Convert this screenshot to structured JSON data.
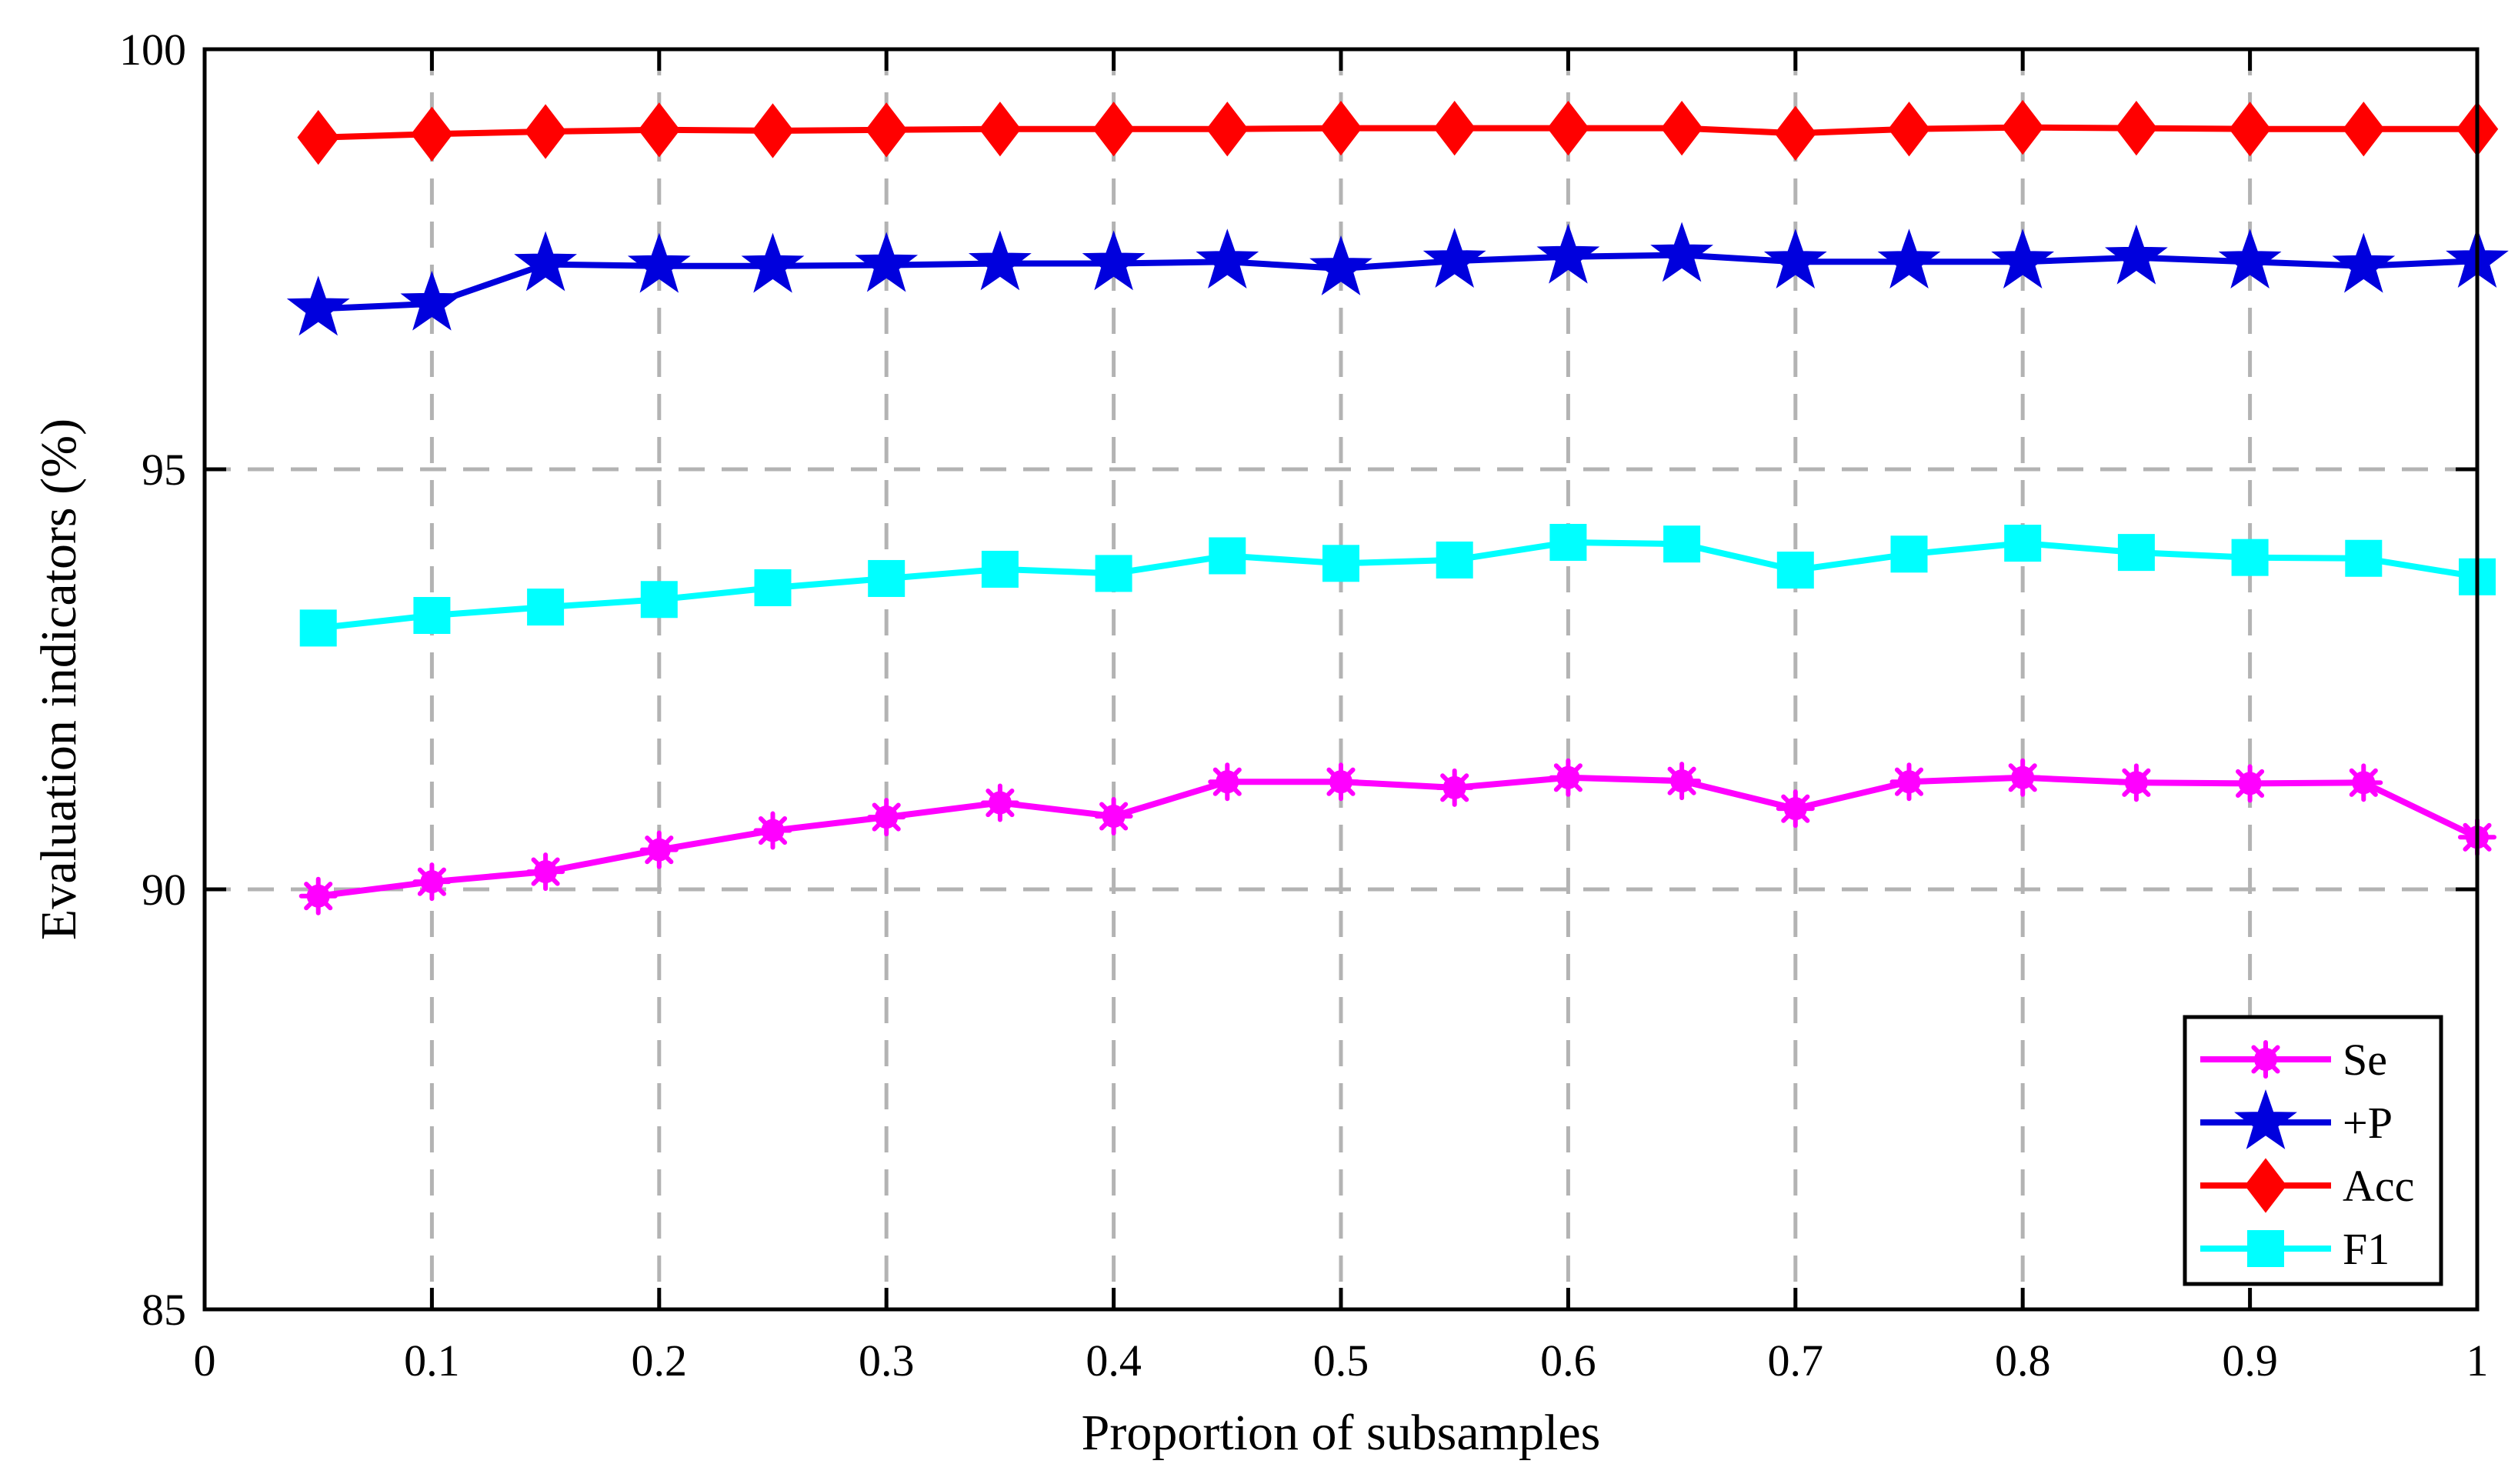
{
  "chart_data": {
    "type": "line",
    "title": "",
    "xlabel": "Proportion of subsamples",
    "ylabel": "Evaluation indicators (%)",
    "xlim": [
      0,
      1
    ],
    "ylim": [
      85,
      100
    ],
    "xticks": [
      0,
      0.1,
      0.2,
      0.3,
      0.4,
      0.5,
      0.6,
      0.7,
      0.8,
      0.9,
      1
    ],
    "xtick_labels": [
      "0",
      "0.1",
      "0.2",
      "0.3",
      "0.4",
      "0.5",
      "0.6",
      "0.7",
      "0.8",
      "0.9",
      "1"
    ],
    "yticks": [
      85,
      90,
      95,
      100
    ],
    "ytick_labels": [
      "85",
      "90",
      "95",
      "100"
    ],
    "grid": true,
    "legend_position": "bottom-right",
    "x": [
      0.05,
      0.1,
      0.15,
      0.2,
      0.25,
      0.3,
      0.35,
      0.4,
      0.45,
      0.5,
      0.55,
      0.6,
      0.65,
      0.7,
      0.75,
      0.8,
      0.85,
      0.9,
      0.95,
      1.0
    ],
    "series": [
      {
        "name": "Se",
        "color": "#ff00ff",
        "marker": "asterisk",
        "values": [
          89.92,
          90.09,
          90.21,
          90.47,
          90.7,
          90.86,
          91.03,
          90.87,
          91.28,
          91.28,
          91.21,
          91.33,
          91.29,
          90.96,
          91.28,
          91.33,
          91.27,
          91.26,
          91.27,
          90.62
        ]
      },
      {
        "name": "+P",
        "color": "#0000dd",
        "marker": "star",
        "values": [
          96.91,
          96.97,
          97.44,
          97.42,
          97.42,
          97.43,
          97.45,
          97.45,
          97.47,
          97.39,
          97.48,
          97.53,
          97.55,
          97.47,
          97.47,
          97.47,
          97.52,
          97.47,
          97.42,
          97.48
        ]
      },
      {
        "name": "Acc",
        "color": "#ff0000",
        "marker": "diamond",
        "values": [
          98.95,
          98.99,
          99.02,
          99.04,
          99.03,
          99.04,
          99.05,
          99.05,
          99.05,
          99.06,
          99.06,
          99.06,
          99.06,
          99.0,
          99.05,
          99.07,
          99.06,
          99.05,
          99.05,
          99.05
        ]
      },
      {
        "name": "F1",
        "color": "#00ffff",
        "marker": "square",
        "values": [
          93.11,
          93.26,
          93.36,
          93.45,
          93.59,
          93.7,
          93.81,
          93.76,
          93.97,
          93.88,
          93.92,
          94.13,
          94.11,
          93.8,
          93.99,
          94.12,
          94.01,
          93.95,
          93.94,
          93.72
        ]
      }
    ]
  }
}
